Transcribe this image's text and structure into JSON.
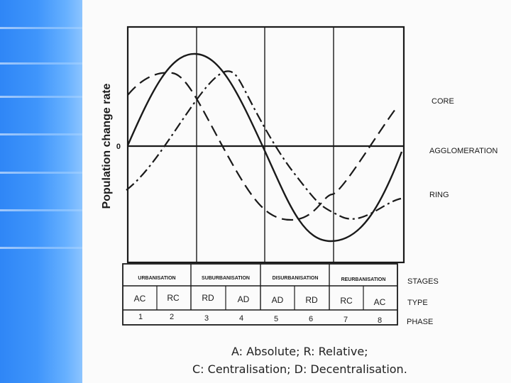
{
  "diagram": {
    "y_axis_label": "Population change rate",
    "zero_label": "0",
    "curve_labels": {
      "core": "CORE",
      "agglomeration": "AGGLOMERATION",
      "ring": "RING"
    },
    "row_labels": {
      "stages": "STAGES",
      "type": "TYPE",
      "phase": "PHASE"
    },
    "stages": [
      "URBANISATION",
      "SUBURBANISATION",
      "DISURBANISATION",
      "REURBANISATION"
    ],
    "types": [
      "AC",
      "RC",
      "RD",
      "AD",
      "AD",
      "RD",
      "RC",
      "AC"
    ],
    "phases": [
      "1",
      "2",
      "3",
      "4",
      "5",
      "6",
      "7",
      "8"
    ]
  },
  "caption": {
    "line1": "A: Absolute; R: Relative;",
    "line2": "C: Centralisation; D: Decentralisation."
  },
  "colors": {
    "sidebar": "#3f95fb",
    "ink": "#1a1a1a"
  }
}
